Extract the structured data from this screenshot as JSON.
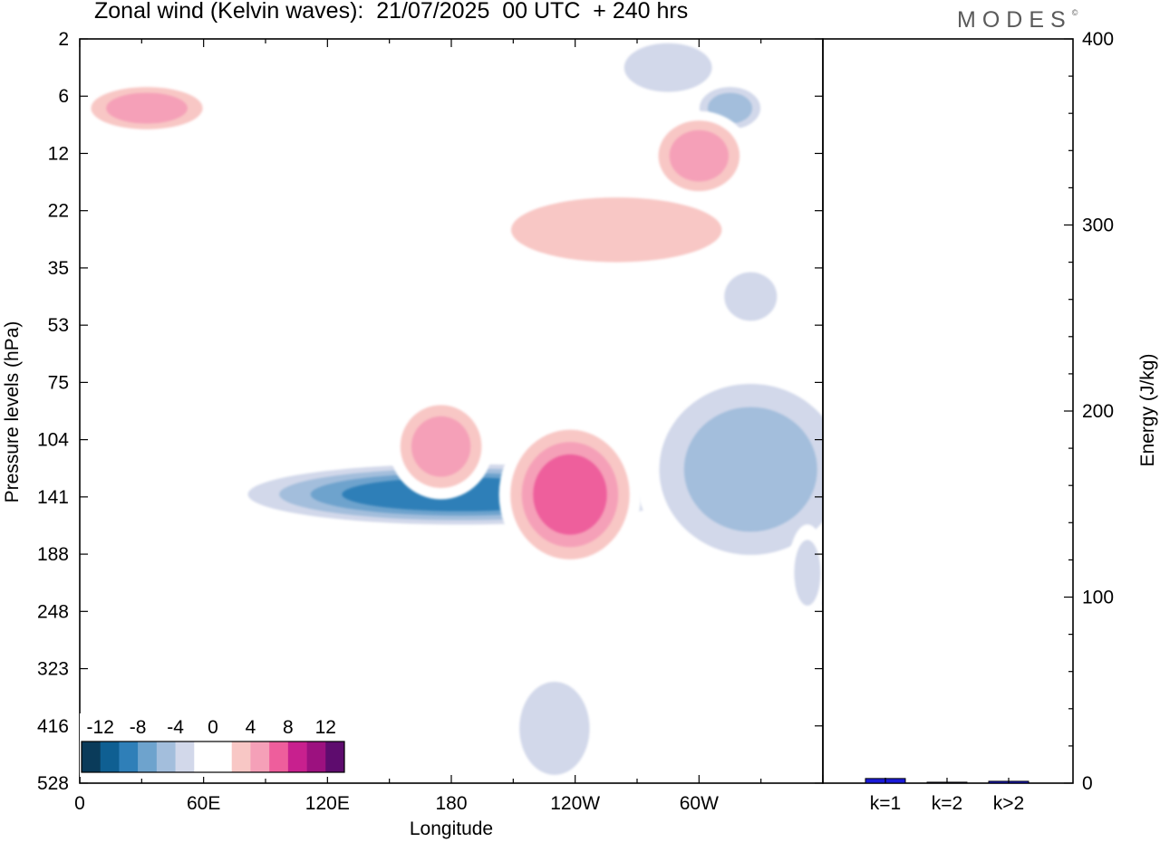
{
  "title": "Zonal wind (Kelvin waves):  21/07/2025  00 UTC  + 240 hrs",
  "logo_text": "MODES",
  "chart_data": [
    {
      "type": "heatmap",
      "title": "Zonal wind (Kelvin waves):  21/07/2025  00 UTC  + 240 hrs",
      "xlabel": "Longitude",
      "ylabel": "Pressure levels (hPa)",
      "x_tick_labels": [
        "0",
        "60E",
        "120E",
        "180",
        "120W",
        "60W"
      ],
      "y_tick_labels": [
        "2",
        "6",
        "12",
        "22",
        "35",
        "53",
        "75",
        "104",
        "141",
        "188",
        "248",
        "323",
        "416",
        "528"
      ],
      "colorbar": {
        "labels": [
          "-12",
          "-8",
          "-4",
          "0",
          "4",
          "8",
          "12"
        ],
        "colors": [
          "#0a3b5a",
          "#0f5f92",
          "#2f7fb8",
          "#6ea3cd",
          "#a3bedc",
          "#d2d8ea",
          "#ffffff",
          "#ffffff",
          "#f8c7c5",
          "#f5a0b8",
          "#ee5e9c",
          "#c8208e",
          "#9c117f",
          "#5e0c6e"
        ]
      },
      "regions": [
        {
          "value": -10,
          "x": [
            90,
            280
          ],
          "y": [
            120,
            160
          ]
        },
        {
          "value": -6,
          "x": [
            280,
            370
          ],
          "y": [
            75,
            190
          ]
        },
        {
          "value": -4,
          "x": [
            350,
            410
          ],
          "y": [
            215,
            248
          ]
        },
        {
          "value": -4,
          "x": [
            260,
            310
          ],
          "y": [
            2,
            6
          ]
        },
        {
          "value": -6,
          "x": [
            300,
            330
          ],
          "y": [
            5,
            9
          ]
        },
        {
          "value": -3,
          "x": [
            310,
            340
          ],
          "y": [
            35,
            53
          ]
        },
        {
          "value": -3,
          "x": [
            210,
            250
          ],
          "y": [
            330,
            528
          ]
        },
        {
          "value": -3,
          "x": [
            345,
            360
          ],
          "y": [
            170,
            248
          ]
        },
        {
          "value": 3,
          "x": [
            200,
            320
          ],
          "y": [
            18,
            35
          ]
        },
        {
          "value": 8,
          "x": [
            210,
            265
          ],
          "y": [
            100,
            190
          ]
        },
        {
          "value": 5,
          "x": [
            155,
            195
          ],
          "y": [
            85,
            135
          ]
        },
        {
          "value": 6,
          "x": [
            5,
            60
          ],
          "y": [
            5,
            9
          ]
        },
        {
          "value": 6,
          "x": [
            280,
            320
          ],
          "y": [
            8,
            18
          ]
        }
      ]
    },
    {
      "type": "bar",
      "categories": [
        "k=1",
        "k=2",
        "k>2"
      ],
      "values": [
        2.5,
        0.5,
        1.0
      ],
      "ylabel": "Energy (J/kg)",
      "ylim": [
        0,
        400
      ],
      "y_tick_labels": [
        "0",
        "100",
        "200",
        "300",
        "400"
      ],
      "bar_color": "#1a1ad8"
    }
  ]
}
